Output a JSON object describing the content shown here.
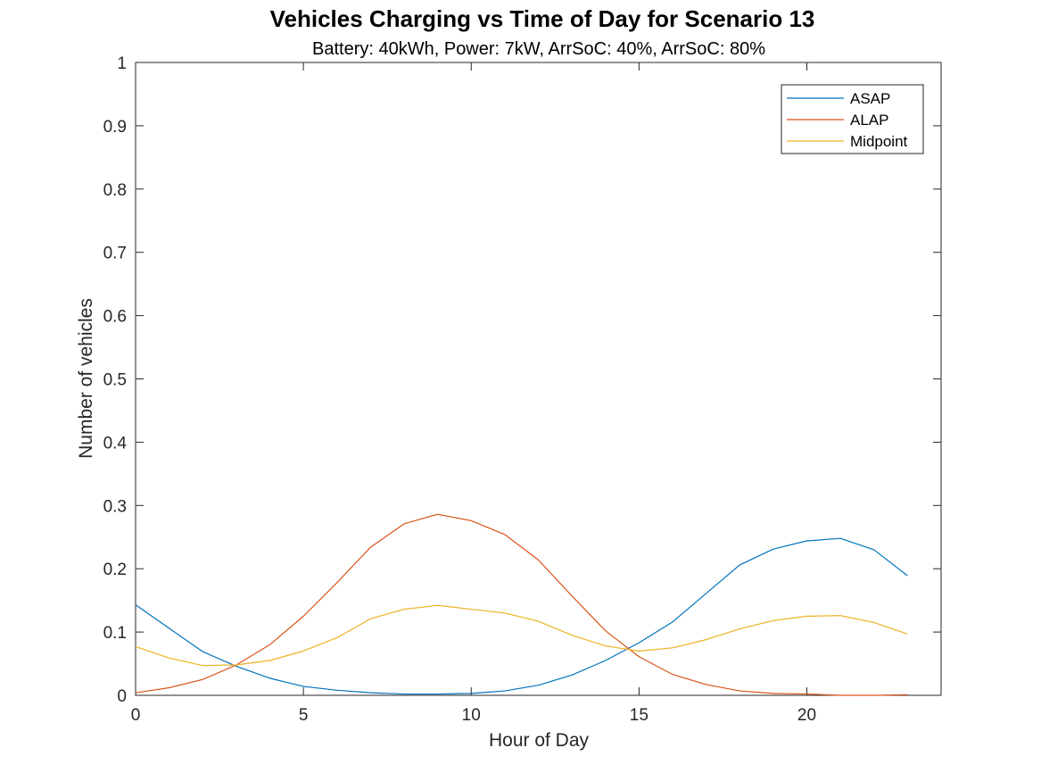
{
  "chart_data": {
    "type": "line",
    "title": "Vehicles Charging vs Time of Day for Scenario 13",
    "subtitle": "Battery: 40kWh, Power: 7kW, ArrSoC: 40%, ArrSoC: 80%",
    "xlabel": "Hour of Day",
    "ylabel": "Number of vehicles",
    "xlim": [
      0,
      24
    ],
    "ylim": [
      0,
      1
    ],
    "xticks": [
      0,
      5,
      10,
      15,
      20
    ],
    "xtick_labels": [
      "0",
      "5",
      "10",
      "15",
      "20"
    ],
    "yticks": [
      0,
      0.1,
      0.2,
      0.3,
      0.4,
      0.5,
      0.6,
      0.7,
      0.8,
      0.9,
      1
    ],
    "ytick_labels": [
      "0",
      "0.1",
      "0.2",
      "0.3",
      "0.4",
      "0.5",
      "0.6",
      "0.7",
      "0.8",
      "0.9",
      "1"
    ],
    "grid": false,
    "legend_position": "top-right",
    "x": [
      0,
      1,
      2,
      3,
      4,
      5,
      6,
      7,
      8,
      9,
      10,
      11,
      12,
      13,
      14,
      15,
      16,
      17,
      18,
      19,
      20,
      21,
      22,
      23
    ],
    "series": [
      {
        "name": "ASAP",
        "color": "#0072BD",
        "values": [
          0.143,
          0.106,
          0.069,
          0.046,
          0.027,
          0.014,
          0.008,
          0.004,
          0.002,
          0.002,
          0.003,
          0.007,
          0.016,
          0.032,
          0.055,
          0.083,
          0.116,
          0.161,
          0.206,
          0.231,
          0.244,
          0.248,
          0.23,
          0.189
        ]
      },
      {
        "name": "ALAP",
        "color": "#D95319",
        "values": [
          0.004,
          0.012,
          0.025,
          0.048,
          0.08,
          0.125,
          0.178,
          0.234,
          0.271,
          0.286,
          0.276,
          0.254,
          0.214,
          0.157,
          0.102,
          0.061,
          0.033,
          0.017,
          0.007,
          0.003,
          0.002,
          0.0,
          0.0,
          0.001
        ]
      },
      {
        "name": "Midpoint",
        "color": "#EDB120",
        "values": [
          0.077,
          0.059,
          0.047,
          0.048,
          0.055,
          0.07,
          0.091,
          0.121,
          0.136,
          0.142,
          0.136,
          0.13,
          0.117,
          0.095,
          0.078,
          0.07,
          0.075,
          0.088,
          0.105,
          0.118,
          0.125,
          0.126,
          0.115,
          0.097
        ]
      }
    ]
  }
}
